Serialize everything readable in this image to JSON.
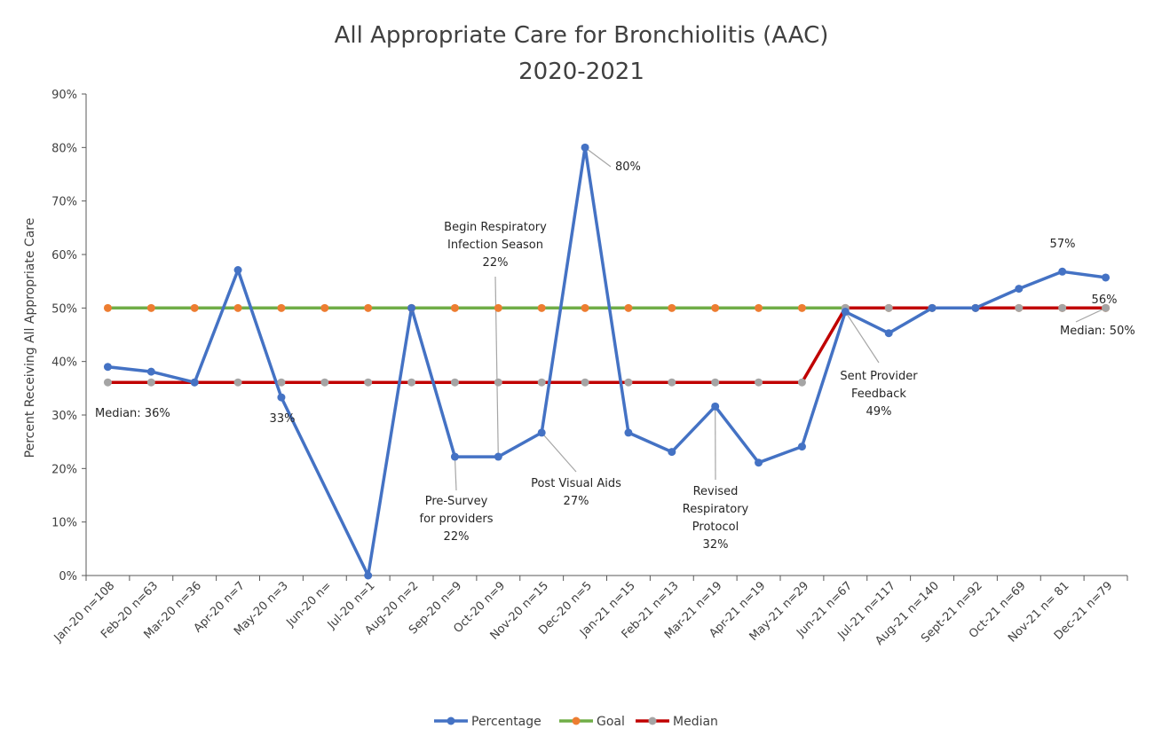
{
  "chart_data": {
    "type": "line",
    "title": "All Appropriate Care for Bronchiolitis (AAC)",
    "subtitle": "2020-2021",
    "xlabel": "",
    "ylabel": "Percent Receiving All Appropriate Care",
    "ylim": [
      0,
      90
    ],
    "y_tick_step": 10,
    "y_tick_suffix": "%",
    "grid": false,
    "legend_position": "bottom",
    "categories": [
      "Jan-20 n=108",
      "Feb-20 n=63",
      "Mar-20 n=36",
      "Apr-20 n=7",
      "May-20 n=3",
      "Jun-20 n=",
      "Jul-20 n=1",
      "Aug-20 n=2",
      "Sep-20 n=9",
      "Oct-20 n=9",
      "Nov-20 n=15",
      "Dec-20 n=5",
      "Jan-21 n=15",
      "Feb-21 n=13",
      "Mar-21 n=19",
      "Apr-21 n=19",
      "May-21 n=29",
      "Jun-21 n=67",
      "Jul-21 n=117",
      "Aug-21 n=140",
      "Sept-21 n=92",
      "Oct-21 n=69",
      "Nov-21 n= 81",
      "Dec-21 n=79"
    ],
    "series": [
      {
        "name": "Percentage",
        "color": "#4472C4",
        "values": [
          39,
          38.1,
          36.1,
          57.1,
          33.3,
          null,
          0,
          50,
          22.2,
          22.2,
          26.7,
          80,
          26.7,
          23.1,
          31.6,
          21.1,
          24.1,
          49.3,
          45.3,
          50,
          50,
          53.6,
          56.8,
          55.7
        ]
      },
      {
        "name": "Goal",
        "color": "#70AD47",
        "marker_color": "#ED7D31",
        "values": [
          50,
          50,
          50,
          50,
          50,
          50,
          50,
          50,
          50,
          50,
          50,
          50,
          50,
          50,
          50,
          50,
          50,
          50,
          50,
          50,
          50,
          50,
          50,
          50
        ]
      },
      {
        "name": "Median",
        "color": "#C00000",
        "marker_color": "#A5A5A5",
        "values": [
          36.1,
          36.1,
          36.1,
          36.1,
          36.1,
          36.1,
          36.1,
          36.1,
          36.1,
          36.1,
          36.1,
          36.1,
          36.1,
          36.1,
          36.1,
          36.1,
          36.1,
          50,
          50,
          50,
          50,
          50,
          50,
          50
        ]
      }
    ],
    "annotations": [
      {
        "id": "median-36",
        "lines": [
          "Median: 36%"
        ],
        "x_index": 0,
        "y": 36.1,
        "leader": false
      },
      {
        "id": "label-33",
        "lines": [
          "33%"
        ],
        "x_index": 4,
        "y": 33.3,
        "leader": false
      },
      {
        "id": "begin-season",
        "lines": [
          "Begin Respiratory",
          "Infection Season",
          "22%"
        ],
        "x_index": 9,
        "y": 22.2,
        "leader": true
      },
      {
        "id": "pre-survey",
        "lines": [
          "Pre-Survey",
          "for providers",
          "22%"
        ],
        "x_index": 8,
        "y": 22.2,
        "leader": true
      },
      {
        "id": "post-visual",
        "lines": [
          "Post Visual Aids",
          "27%"
        ],
        "x_index": 10,
        "y": 26.7,
        "leader": true
      },
      {
        "id": "label-80",
        "lines": [
          "80%"
        ],
        "x_index": 11,
        "y": 80,
        "leader": true
      },
      {
        "id": "revised-protocol",
        "lines": [
          "Revised",
          "Respiratory",
          "Protocol",
          "32%"
        ],
        "x_index": 14,
        "y": 31.6,
        "leader": true
      },
      {
        "id": "sent-feedback",
        "lines": [
          "Sent Provider",
          "Feedback",
          "49%"
        ],
        "x_index": 17,
        "y": 49.3,
        "leader": true
      },
      {
        "id": "label-57",
        "lines": [
          "57%"
        ],
        "x_index": 22,
        "y": 56.8,
        "leader": false
      },
      {
        "id": "label-56",
        "lines": [
          "56%"
        ],
        "x_index": 23,
        "y": 55.7,
        "leader": false
      },
      {
        "id": "median-50",
        "lines": [
          "Median: 50%"
        ],
        "x_index": 23,
        "y": 50,
        "leader": true
      }
    ]
  }
}
